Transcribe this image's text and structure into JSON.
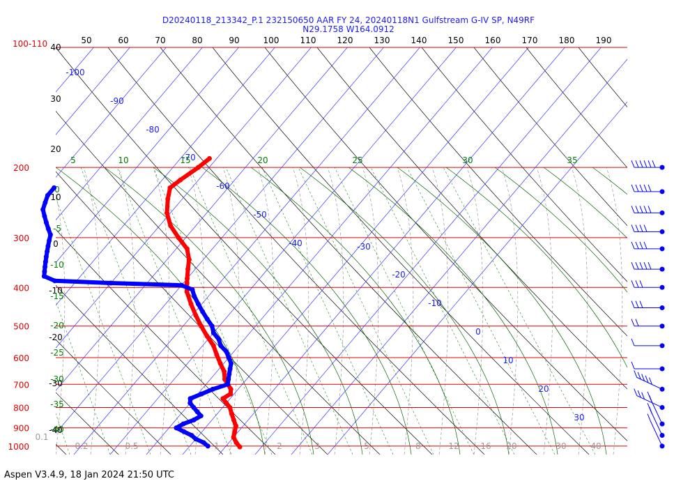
{
  "chart_data": {
    "type": "scatter",
    "title": "D20240118_213342_P.1 232150650 AAR FY 24, 20240118N1 Gulfstream G-IV SP, N49RF",
    "subtitle": "N29.1758 W164.0912",
    "top_ticks": [
      "50",
      "60",
      "70",
      "80",
      "90",
      "100",
      "110",
      "120",
      "130",
      "140",
      "150",
      "160",
      "170",
      "180",
      "190"
    ],
    "pressure_axis_label": "100-110",
    "pressure_levels": [
      {
        "p": 100,
        "label": ""
      },
      {
        "p": 200,
        "label": "200"
      },
      {
        "p": 300,
        "label": "300"
      },
      {
        "p": 400,
        "label": "400"
      },
      {
        "p": 500,
        "label": "500"
      },
      {
        "p": 600,
        "label": "600"
      },
      {
        "p": 700,
        "label": "700"
      },
      {
        "p": 800,
        "label": "800"
      },
      {
        "p": 900,
        "label": "900"
      },
      {
        "p": 1000,
        "label": "1000"
      }
    ],
    "left_black_ticks": [
      "40",
      "30",
      "20",
      "10",
      "0",
      "-10",
      "-20",
      "-30",
      "-40"
    ],
    "left_green_ticks": [
      "0",
      "-5",
      "-10",
      "-15",
      "-20",
      "-25",
      "-30",
      "-35",
      "-40"
    ],
    "blue_isotherm_labels": [
      "-100",
      "-90",
      "-80",
      "-70",
      "-60",
      "-50",
      "-40",
      "-30",
      "-20",
      "-10",
      "0",
      "10",
      "20",
      "30"
    ],
    "mixing_ratio_top_labels": [
      "5",
      "10",
      "15",
      "20",
      "25",
      "30",
      "35"
    ],
    "mixing_ratio_bottom_labels": [
      "0.1",
      "0.2",
      "0.5",
      "1",
      "2",
      "3",
      "5",
      "8",
      "12",
      "16",
      "20",
      "30",
      "40"
    ],
    "temperature_series": {
      "name": "Temperature",
      "color": "#ff0000",
      "points": [
        [
          -52,
          190
        ],
        [
          -53,
          200
        ],
        [
          -55,
          215
        ],
        [
          -56,
          225
        ],
        [
          -54,
          240
        ],
        [
          -51,
          260
        ],
        [
          -47,
          280
        ],
        [
          -42,
          300
        ],
        [
          -37,
          320
        ],
        [
          -34,
          340
        ],
        [
          -32,
          360
        ],
        [
          -30,
          380
        ],
        [
          -29,
          390
        ],
        [
          -27,
          410
        ],
        [
          -23,
          440
        ],
        [
          -19,
          470
        ],
        [
          -15,
          500
        ],
        [
          -11,
          530
        ],
        [
          -7,
          560
        ],
        [
          -4,
          590
        ],
        [
          -1,
          620
        ],
        [
          2,
          650
        ],
        [
          4,
          680
        ],
        [
          6,
          700
        ],
        [
          8,
          720
        ],
        [
          9,
          740
        ],
        [
          8,
          760
        ],
        [
          10,
          780
        ],
        [
          12,
          800
        ],
        [
          14,
          830
        ],
        [
          16,
          860
        ],
        [
          18,
          890
        ],
        [
          19,
          920
        ],
        [
          20,
          950
        ],
        [
          22,
          980
        ],
        [
          24,
          1005
        ]
      ]
    },
    "dewpoint_series": {
      "name": "Dewpoint",
      "color": "#0000ff",
      "points": [
        [
          -88,
          225
        ],
        [
          -88,
          235
        ],
        [
          -87,
          245
        ],
        [
          -86,
          255
        ],
        [
          -84,
          265
        ],
        [
          -82,
          275
        ],
        [
          -80,
          285
        ],
        [
          -78,
          295
        ],
        [
          -77,
          305
        ],
        [
          -76,
          315
        ],
        [
          -75,
          325
        ],
        [
          -74,
          335
        ],
        [
          -73,
          345
        ],
        [
          -72,
          355
        ],
        [
          -71,
          365
        ],
        [
          -70,
          375
        ],
        [
          -66,
          385
        ],
        [
          -50,
          390
        ],
        [
          -30,
          395
        ],
        [
          -26,
          405
        ],
        [
          -24,
          420
        ],
        [
          -21,
          440
        ],
        [
          -18,
          460
        ],
        [
          -15,
          480
        ],
        [
          -12,
          500
        ],
        [
          -10,
          520
        ],
        [
          -7,
          540
        ],
        [
          -5,
          560
        ],
        [
          -2,
          580
        ],
        [
          0,
          600
        ],
        [
          2,
          620
        ],
        [
          3,
          640
        ],
        [
          4,
          660
        ],
        [
          5,
          680
        ],
        [
          6,
          700
        ],
        [
          3,
          720
        ],
        [
          1,
          740
        ],
        [
          -1,
          760
        ],
        [
          0,
          780
        ],
        [
          2,
          800
        ],
        [
          4,
          820
        ],
        [
          6,
          840
        ],
        [
          5,
          860
        ],
        [
          3,
          880
        ],
        [
          2,
          900
        ],
        [
          5,
          920
        ],
        [
          8,
          940
        ],
        [
          10,
          960
        ],
        [
          13,
          980
        ],
        [
          15,
          1000
        ]
      ]
    },
    "wind_barbs": [
      {
        "p": 200,
        "speed": 60,
        "dir": "W"
      },
      {
        "p": 230,
        "speed": 55,
        "dir": "W"
      },
      {
        "p": 260,
        "speed": 55,
        "dir": "W"
      },
      {
        "p": 290,
        "speed": 45,
        "dir": "W"
      },
      {
        "p": 320,
        "speed": 40,
        "dir": "W"
      },
      {
        "p": 360,
        "speed": 55,
        "dir": "W"
      },
      {
        "p": 400,
        "speed": 35,
        "dir": "W"
      },
      {
        "p": 450,
        "speed": 30,
        "dir": "W"
      },
      {
        "p": 500,
        "speed": 25,
        "dir": "W"
      },
      {
        "p": 560,
        "speed": 10,
        "dir": "W"
      },
      {
        "p": 640,
        "speed": 10,
        "dir": "W"
      },
      {
        "p": 720,
        "speed": 50,
        "dir": "SW"
      },
      {
        "p": 800,
        "speed": 35,
        "dir": "SW"
      },
      {
        "p": 880,
        "speed": 25,
        "dir": "S"
      },
      {
        "p": 940,
        "speed": 20,
        "dir": "S"
      },
      {
        "p": 1000,
        "speed": 15,
        "dir": "S"
      }
    ]
  },
  "footer": {
    "text": "Aspen V3.4.9, 18 Jan 2024  21:50 UTC"
  }
}
